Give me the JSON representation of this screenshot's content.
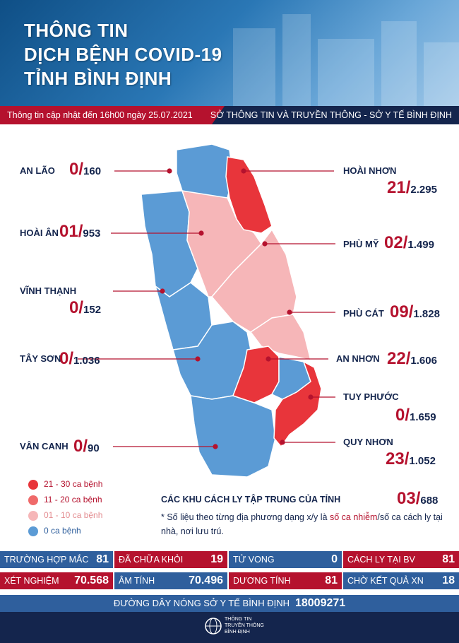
{
  "header": {
    "title_lines": [
      "THÔNG TIN",
      "DỊCH BỆNH COVID-19",
      "TỈNH BÌNH ĐỊNH"
    ],
    "update": "Thông tin cập nhật đến 16h00 ngày 25.07.2021",
    "source": "SỞ THÔNG TIN VÀ TRUYỀN THÔNG - SỞ Y TẾ BÌNH ĐỊNH"
  },
  "districts": [
    {
      "name": "AN LÃO",
      "cases": "0",
      "sep": "/",
      "isolated": "160"
    },
    {
      "name": "HOÀI ÂN",
      "cases": "01",
      "sep": "/",
      "isolated": "953"
    },
    {
      "name": "VĨNH THẠNH",
      "cases": "0",
      "sep": "/",
      "isolated": "152"
    },
    {
      "name": "TÂY SƠN",
      "cases": "0",
      "sep": "/",
      "isolated": "1.036"
    },
    {
      "name": "VÂN CANH",
      "cases": "0",
      "sep": "/",
      "isolated": "90"
    },
    {
      "name": "HOÀI NHƠN",
      "cases": "21",
      "sep": "/",
      "isolated": "2.295"
    },
    {
      "name": "PHÙ MỸ",
      "cases": "02",
      "sep": "/",
      "isolated": "1.499"
    },
    {
      "name": "PHÙ CÁT",
      "cases": "09",
      "sep": "/",
      "isolated": "1.828"
    },
    {
      "name": "AN NHƠN",
      "cases": "22",
      "sep": "/",
      "isolated": "1.606"
    },
    {
      "name": "TUY PHƯỚC",
      "cases": "0",
      "sep": "/",
      "isolated": "1.659"
    },
    {
      "name": "QUY NHƠN",
      "cases": "23",
      "sep": "/",
      "isolated": "1.052"
    }
  ],
  "quarantine": {
    "label": "CÁC KHU CÁCH LY TẬP TRUNG CỦA TỈNH",
    "cases": "03",
    "sep": "/",
    "isolated": "688"
  },
  "legend": [
    {
      "label": "21 - 30 ca bệnh",
      "color": "#e8353b"
    },
    {
      "label": "11 - 20 ca bệnh",
      "color": "#ef6a6a"
    },
    {
      "label": "01 - 10 ca bệnh",
      "color": "#f6b6b8"
    },
    {
      "label": "0 ca bệnh",
      "color": "#5b9bd5"
    }
  ],
  "note": {
    "p1": "* Số liệu theo từng địa phương dạng x/y  là ",
    "red": "số ca nhiễm",
    "p2": "/số  ca cách ly tại nhà, nơi lưu trú."
  },
  "stats_row1": [
    {
      "label": "TRƯỜNG HỢP MẮC",
      "value": "81"
    },
    {
      "label": "ĐÃ CHỮA KHỎI",
      "value": "19"
    },
    {
      "label": "TỬ VONG",
      "value": "0"
    },
    {
      "label": "CÁCH LY TẠI BV",
      "value": "81"
    }
  ],
  "stats_row2": [
    {
      "label": "XÉT NGHIỆM",
      "value": "70.568"
    },
    {
      "label": "ÂM TÍNH",
      "value": "70.496"
    },
    {
      "label": "DƯƠNG TÍNH",
      "value": "81"
    },
    {
      "label": "CHỜ KẾT QUẢ XN",
      "value": "18"
    }
  ],
  "hotline": {
    "label": "ĐƯỜNG DÂY NÓNG SỞ Y TẾ BÌNH ĐỊNH",
    "number": "18009271"
  },
  "footer": {
    "line1": "THÔNG TIN",
    "line2": "TRUYỀN THÔNG",
    "line3": "BÌNH ĐỊNH"
  },
  "colors": {
    "red": "#b5122e",
    "navy": "#14254d",
    "blue": "#2f5f9d"
  }
}
